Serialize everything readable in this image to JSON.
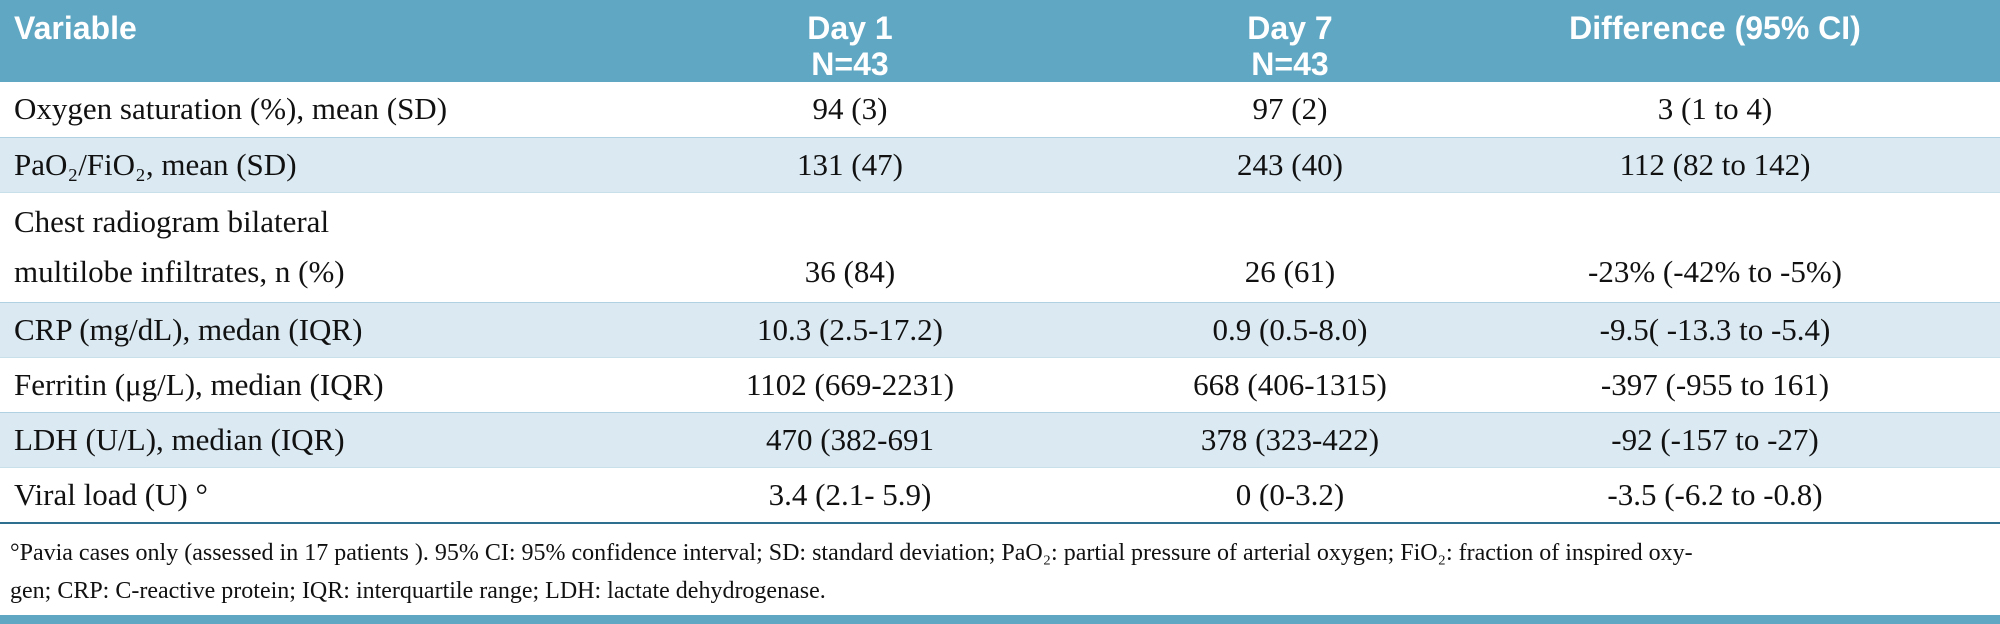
{
  "table": {
    "header": {
      "variable": "Variable",
      "day1_title": "Day 1",
      "day1_n": "N=43",
      "day7_title": "Day 7",
      "day7_n": "N=43",
      "difference": "Difference (95% CI)"
    },
    "rows": [
      {
        "variable": "Oxygen saturation (%), mean (SD)",
        "day1": "94 (3)",
        "day7": "97 (2)",
        "difference": "3 (1 to 4)"
      },
      {
        "variable": "PaO₂/FiO₂, mean (SD)",
        "day1": "131 (47)",
        "day7": "243 (40)",
        "difference": "112 (82 to 142)"
      },
      {
        "variable_line1": "Chest radiogram bilateral",
        "variable_line2": "multilobe infiltrates, n (%)",
        "day1": "36 (84)",
        "day7": "26 (61)",
        "difference": "-23% (-42% to -5%)"
      },
      {
        "variable": "CRP (mg/dL), medan (IQR)",
        "day1": "10.3 (2.5-17.2)",
        "day7": "0.9 (0.5-8.0)",
        "difference": "-9.5( -13.3 to -5.4)"
      },
      {
        "variable": "Ferritin (μg/L), median (IQR)",
        "day1": "1102 (669-2231)",
        "day7": "668 (406-1315)",
        "difference": "-397 (-955 to 161)"
      },
      {
        "variable": "LDH (U/L), median (IQR)",
        "day1": "470 (382-691",
        "day7": "378 (323-422)",
        "difference": "-92 (-157 to -27)"
      },
      {
        "variable": "Viral load (U) °",
        "day1": "3.4 (2.1- 5.9)",
        "day7": "0 (0-3.2)",
        "difference": "-3.5 (-6.2 to -0.8)"
      }
    ],
    "footnote": {
      "line1": "°Pavia cases only  (assessed in 17 patients ). 95% CI: 95% confidence interval; SD: standard deviation; PaO₂: partial pressure of arterial oxygen;  FiO₂: fraction of inspired oxy-",
      "line2": "gen; CRP: C-reactive protein; IQR: interquartile range; LDH: lactate dehydrogenase."
    }
  },
  "colors": {
    "header_bg": "#60a7c4",
    "stripe_bg": "#dbe9f2",
    "rule": "#2e6e8e",
    "bottom_bar": "#60a7c4",
    "header_text": "#ffffff",
    "body_text": "#111111"
  }
}
